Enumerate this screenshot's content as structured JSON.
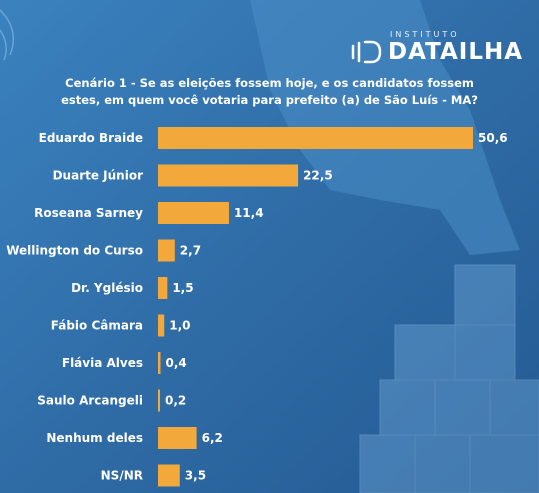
{
  "brand": {
    "institute": "INSTITUTO",
    "name": "DATAILHA"
  },
  "chart_data": {
    "type": "bar",
    "orientation": "horizontal",
    "title_lines": [
      "Cenário 1 - Se as eleições fossem hoje, e os candidatos fossem",
      "estes, em quem você votaria para prefeito (a) de São Luís - MA?"
    ],
    "categories": [
      "Eduardo Braide",
      "Duarte Júnior",
      "Roseana Sarney",
      "Wellington do Curso",
      "Dr. Yglésio",
      "Fábio Câmara",
      "Flávia Alves",
      "Saulo Arcangeli",
      "Nenhum deles",
      "NS/NR"
    ],
    "values": [
      50.6,
      22.5,
      11.4,
      2.7,
      1.5,
      1.0,
      0.4,
      0.2,
      6.2,
      3.5
    ],
    "value_labels": [
      "50,6",
      "22,5",
      "11,4",
      "2,7",
      "1,5",
      "1,0",
      "0,4",
      "0,2",
      "6,2",
      "3,5"
    ],
    "xlim": [
      0,
      50.6
    ],
    "grid": false,
    "bar_color": "#f2a83a",
    "label_color": "#ffffff"
  }
}
